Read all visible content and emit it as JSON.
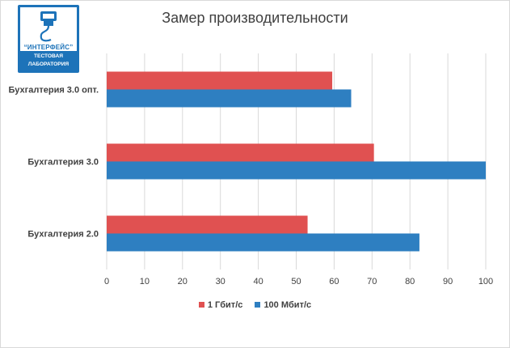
{
  "logo": {
    "brand": "“ИНТЕРФЕЙС”",
    "line1": "ТЕСТОВАЯ",
    "line2": "ЛАБОРАТОРИЯ"
  },
  "colors": {
    "series1": "#e05151",
    "series2": "#2e7fc1",
    "grid": "#d9d9d9",
    "text": "#404040",
    "logo": "#1d73b9"
  },
  "chart_data": {
    "type": "bar",
    "orientation": "horizontal",
    "title": "Замер производительности",
    "categories": [
      "Бухгалтерия 3.0 опт.",
      "Бухгалтерия 3.0",
      "Бухгалтерия 2.0"
    ],
    "series": [
      {
        "name": "1 Гбит/с",
        "values": [
          59.5,
          70.5,
          53
        ]
      },
      {
        "name": "100 Мбит/с",
        "values": [
          64.5,
          100,
          82.5
        ]
      }
    ],
    "xlim": [
      0,
      100
    ],
    "xticks": [
      0,
      10,
      20,
      30,
      40,
      50,
      60,
      70,
      80,
      90,
      100
    ],
    "grid": true,
    "legend_position": "bottom"
  }
}
